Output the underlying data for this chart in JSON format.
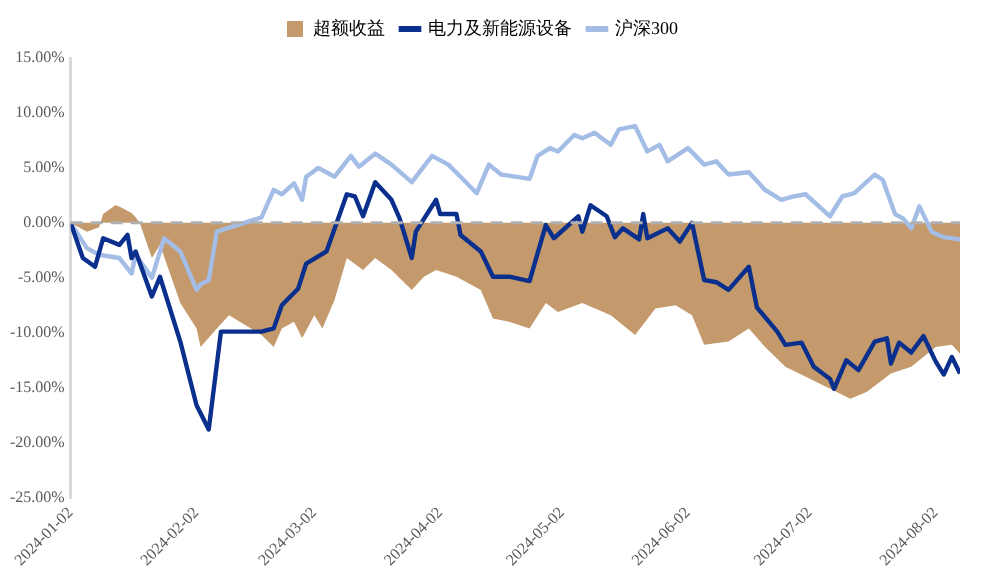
{
  "chart_data": {
    "type": "line",
    "xlim": [
      "2024-01-02",
      "2024-08-08"
    ],
    "xticks": [
      "2024-01-02",
      "2024-02-02",
      "2024-03-02",
      "2024-04-02",
      "2024-05-02",
      "2024-06-02",
      "2024-07-02",
      "2024-08-02"
    ],
    "ylim": [
      -25,
      15
    ],
    "yticks": [
      {
        "value": -25,
        "label": "-25.00%"
      },
      {
        "value": -20,
        "label": "-20.00%"
      },
      {
        "value": -15,
        "label": "-15.00%"
      },
      {
        "value": -10,
        "label": "-10.00%"
      },
      {
        "value": -5,
        "label": "-5.00%"
      },
      {
        "value": 0,
        "label": "0.00%"
      },
      {
        "value": 5,
        "label": "5.00%"
      },
      {
        "value": 10,
        "label": "10.00%"
      },
      {
        "value": 15,
        "label": "15.00%"
      }
    ],
    "grid": false,
    "legend": "top",
    "marker": "none",
    "ref_lines": [
      {
        "axis": "y",
        "value": 0,
        "color": "#b0b0b0",
        "line_style": "dashed"
      }
    ],
    "series": [
      {
        "name": "超额收益",
        "type": "area",
        "color": "#c49a6c",
        "x": [
          "2024-01-02",
          "2024-01-06",
          "2024-01-09",
          "2024-01-10",
          "2024-01-13",
          "2024-01-14",
          "2024-01-17",
          "2024-01-18",
          "2024-01-19",
          "2024-01-22",
          "2024-01-24",
          "2024-01-29",
          "2024-02-02",
          "2024-02-03",
          "2024-02-07",
          "2024-02-10",
          "2024-02-18",
          "2024-02-21",
          "2024-02-23",
          "2024-02-26",
          "2024-02-28",
          "2024-03-02",
          "2024-03-04",
          "2024-03-07",
          "2024-03-10",
          "2024-03-14",
          "2024-03-17",
          "2024-03-21",
          "2024-03-26",
          "2024-03-29",
          "2024-04-01",
          "2024-04-06",
          "2024-04-12",
          "2024-04-15",
          "2024-04-19",
          "2024-04-24",
          "2024-04-28",
          "2024-05-01",
          "2024-05-07",
          "2024-05-14",
          "2024-05-20",
          "2024-05-25",
          "2024-05-30",
          "2024-06-03",
          "2024-06-06",
          "2024-06-12",
          "2024-06-17",
          "2024-06-21",
          "2024-06-26",
          "2024-07-01",
          "2024-07-07",
          "2024-07-12",
          "2024-07-16",
          "2024-07-22",
          "2024-07-27",
          "2024-08-02",
          "2024-08-06",
          "2024-08-08"
        ],
        "values": [
          0,
          -0.8,
          -0.4,
          0.8,
          1.6,
          1.5,
          0.9,
          0.5,
          0,
          -3.2,
          -2.0,
          -7.3,
          -9.6,
          -11.3,
          -9.6,
          -8.4,
          -10.2,
          -11.3,
          -9.6,
          -9.0,
          -10.5,
          -8.4,
          -9.6,
          -7.0,
          -3.2,
          -4.3,
          -3.2,
          -4.3,
          -6.1,
          -4.9,
          -4.3,
          -4.9,
          -6.1,
          -8.7,
          -9.0,
          -9.6,
          -7.3,
          -8.1,
          -7.3,
          -8.4,
          -10.2,
          -7.8,
          -7.5,
          -8.4,
          -11.1,
          -10.8,
          -9.6,
          -11.3,
          -13.1,
          -14.0,
          -15.1,
          -16.0,
          -15.4,
          -13.7,
          -13.1,
          -11.3,
          -11.1,
          -11.9
        ]
      },
      {
        "name": "电力及新能源设备",
        "type": "line",
        "color": "#0a2f8c",
        "x": [
          "2024-01-02",
          "2024-01-05",
          "2024-01-08",
          "2024-01-10",
          "2024-01-14",
          "2024-01-16",
          "2024-01-17",
          "2024-01-18",
          "2024-01-22",
          "2024-01-24",
          "2024-01-29",
          "2024-01-31",
          "2024-02-02",
          "2024-02-05",
          "2024-02-08",
          "2024-02-18",
          "2024-02-21",
          "2024-02-23",
          "2024-02-27",
          "2024-02-29",
          "2024-03-05",
          "2024-03-10",
          "2024-03-12",
          "2024-03-14",
          "2024-03-17",
          "2024-03-21",
          "2024-03-23",
          "2024-03-26",
          "2024-03-27",
          "2024-04-01",
          "2024-04-02",
          "2024-04-06",
          "2024-04-07",
          "2024-04-12",
          "2024-04-15",
          "2024-04-19",
          "2024-04-24",
          "2024-04-28",
          "2024-04-30",
          "2024-05-06",
          "2024-05-07",
          "2024-05-09",
          "2024-05-13",
          "2024-05-15",
          "2024-05-17",
          "2024-05-21",
          "2024-05-22",
          "2024-05-23",
          "2024-05-28",
          "2024-05-31",
          "2024-06-03",
          "2024-06-06",
          "2024-06-09",
          "2024-06-12",
          "2024-06-17",
          "2024-06-19",
          "2024-06-24",
          "2024-06-26",
          "2024-06-30",
          "2024-07-03",
          "2024-07-07",
          "2024-07-08",
          "2024-07-11",
          "2024-07-14",
          "2024-07-18",
          "2024-07-21",
          "2024-07-22",
          "2024-07-24",
          "2024-07-27",
          "2024-07-30",
          "2024-08-02",
          "2024-08-04",
          "2024-08-06",
          "2024-08-08"
        ],
        "values": [
          0,
          -3.2,
          -4.0,
          -1.4,
          -2.0,
          -1.1,
          -3.2,
          -2.6,
          -6.7,
          -4.9,
          -10.8,
          -13.7,
          -16.6,
          -18.8,
          -9.9,
          -9.9,
          -9.6,
          -7.5,
          -6.0,
          -3.7,
          -2.6,
          2.6,
          2.4,
          0.6,
          3.7,
          2.1,
          0.4,
          -3.2,
          -0.8,
          2.1,
          0.8,
          0.8,
          -1.1,
          -2.6,
          -4.9,
          -4.9,
          -5.3,
          -0.2,
          -1.4,
          0.6,
          -0.8,
          1.6,
          0.6,
          -1.3,
          -0.5,
          -1.5,
          0.8,
          -1.4,
          -0.5,
          -1.7,
          0,
          -5.2,
          -5.4,
          -6.1,
          -4.0,
          -7.7,
          -9.9,
          -11.1,
          -10.9,
          -13.1,
          -14.2,
          -15.1,
          -12.5,
          -13.4,
          -10.8,
          -10.5,
          -12.8,
          -10.9,
          -11.8,
          -10.3,
          -12.6,
          -13.8,
          -12.2,
          -13.7
        ]
      },
      {
        "name": "沪深300",
        "type": "line",
        "color": "#a4bde6",
        "x": [
          "2024-01-02",
          "2024-01-06",
          "2024-01-09",
          "2024-01-14",
          "2024-01-17",
          "2024-01-18",
          "2024-01-22",
          "2024-01-25",
          "2024-01-29",
          "2024-02-02",
          "2024-02-03",
          "2024-02-05",
          "2024-02-07",
          "2024-02-18",
          "2024-02-21",
          "2024-02-23",
          "2024-02-26",
          "2024-02-28",
          "2024-02-29",
          "2024-03-03",
          "2024-03-07",
          "2024-03-11",
          "2024-03-13",
          "2024-03-17",
          "2024-03-21",
          "2024-03-26",
          "2024-03-31",
          "2024-04-04",
          "2024-04-07",
          "2024-04-11",
          "2024-04-14",
          "2024-04-17",
          "2024-04-24",
          "2024-04-26",
          "2024-04-29",
          "2024-05-01",
          "2024-05-05",
          "2024-05-07",
          "2024-05-10",
          "2024-05-14",
          "2024-05-16",
          "2024-05-20",
          "2024-05-23",
          "2024-05-26",
          "2024-05-28",
          "2024-06-02",
          "2024-06-06",
          "2024-06-09",
          "2024-06-12",
          "2024-06-17",
          "2024-06-21",
          "2024-06-25",
          "2024-06-28",
          "2024-07-01",
          "2024-07-07",
          "2024-07-10",
          "2024-07-13",
          "2024-07-18",
          "2024-07-20",
          "2024-07-23",
          "2024-07-25",
          "2024-07-27",
          "2024-07-29",
          "2024-08-01",
          "2024-08-04",
          "2024-08-08"
        ],
        "values": [
          0,
          -2.3,
          -2.9,
          -3.2,
          -4.6,
          -2.9,
          -5.0,
          -1.4,
          -2.6,
          -6.1,
          -5.6,
          -5.2,
          -0.8,
          0.5,
          3.0,
          2.6,
          3.6,
          2.1,
          4.2,
          5.0,
          4.2,
          6.1,
          5.1,
          6.3,
          5.3,
          3.7,
          6.1,
          5.3,
          4.2,
          2.7,
          5.3,
          4.4,
          4.0,
          6.1,
          6.8,
          6.5,
          8.0,
          7.7,
          8.2,
          7.1,
          8.5,
          8.8,
          6.5,
          7.1,
          5.6,
          6.8,
          5.3,
          5.6,
          4.4,
          4.6,
          3.0,
          2.1,
          2.4,
          2.6,
          0.6,
          2.4,
          2.7,
          4.4,
          3.9,
          0.8,
          0.4,
          -0.5,
          1.5,
          -0.8,
          -1.3,
          -1.5
        ]
      }
    ]
  }
}
